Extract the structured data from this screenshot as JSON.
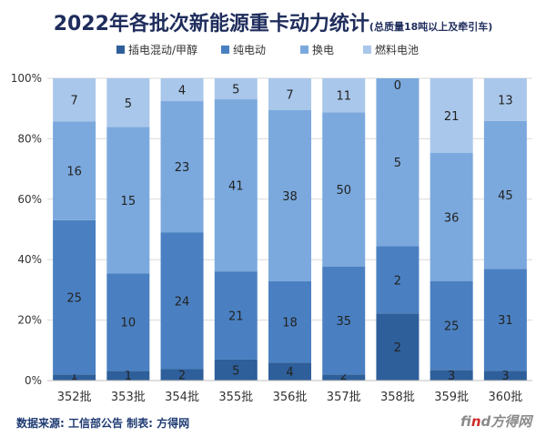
{
  "chart_data": {
    "type": "bar",
    "stacked": true,
    "title": "2022年各批次新能源重卡动力统计",
    "subtitle": "(总质量18吨以上及牵引车)",
    "categories": [
      "352批",
      "353批",
      "354批",
      "355批",
      "356批",
      "357批",
      "358批",
      "359批",
      "360批"
    ],
    "series": [
      {
        "name": "插电混动/甲醇",
        "color": "#2e5f9a",
        "values": [
          1,
          1,
          2,
          5,
          4,
          2,
          2,
          3,
          3
        ]
      },
      {
        "name": "纯电动",
        "color": "#4a80c1",
        "values": [
          25,
          10,
          24,
          21,
          18,
          35,
          2,
          25,
          31
        ]
      },
      {
        "name": "换电",
        "color": "#7ba9dd",
        "values": [
          16,
          15,
          23,
          41,
          38,
          50,
          5,
          36,
          45
        ]
      },
      {
        "name": "燃料电池",
        "color": "#a9c7ea",
        "values": [
          7,
          5,
          4,
          5,
          7,
          11,
          0,
          21,
          13
        ]
      }
    ],
    "y_ticks": [
      "0%",
      "20%",
      "40%",
      "60%",
      "80%",
      "100%"
    ],
    "ylim": [
      0,
      100
    ],
    "y_format": "percent",
    "legend_position": "top",
    "gridlines": true
  },
  "footer": {
    "source": "数据来源: 工信部公告   制表: 方得网"
  },
  "watermark": {
    "prefix": "fi",
    "accent": "n",
    "suffix": "d方得网"
  }
}
